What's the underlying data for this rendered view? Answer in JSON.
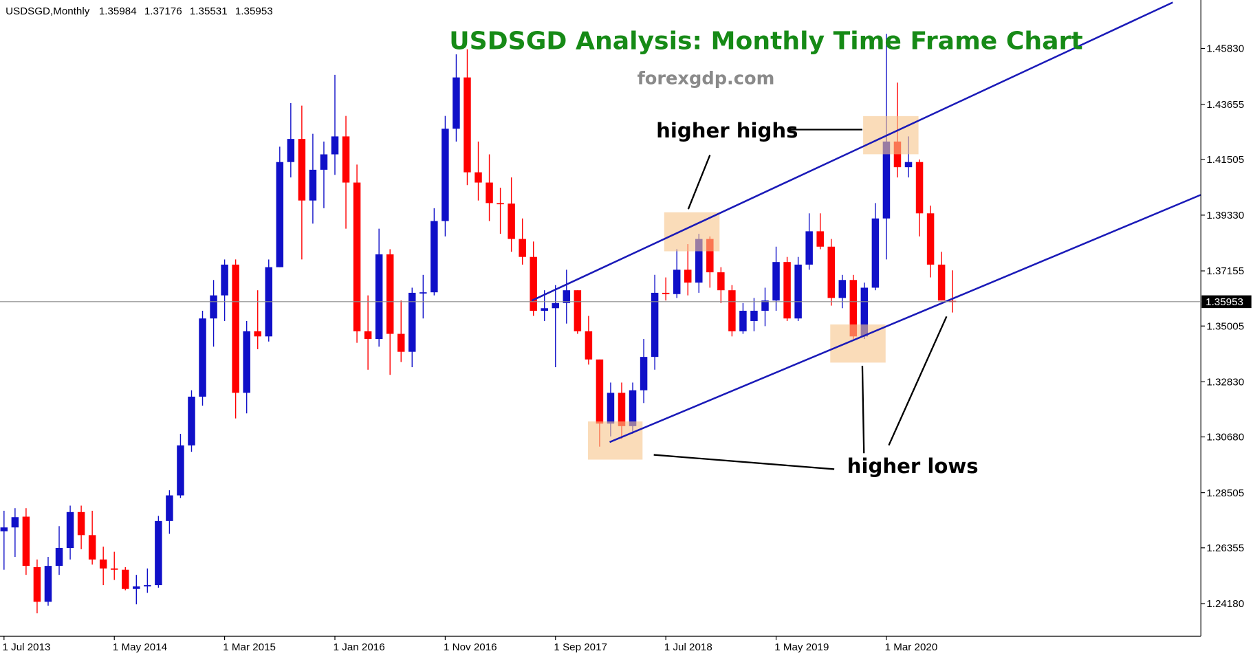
{
  "chart_data": {
    "type": "candlestick",
    "header": {
      "symbol": "USDSGD,Monthly",
      "open": 1.35984,
      "high": 1.37176,
      "low": 1.35531,
      "close": 1.35953
    },
    "title": "USDSGD Analysis: Monthly Time Frame Chart",
    "subtitle": "forexgdp.com",
    "annotations": [
      "higher highs",
      "higher lows"
    ],
    "up_color": "#1010c8",
    "down_color": "#ff0000",
    "ylim": [
      1.2291,
      1.4772
    ],
    "yticks": [
      {
        "value": 1.4583,
        "label": "1.45830"
      },
      1.43655,
      1.41505,
      {
        "value": 1.3933,
        "label": "1.39330"
      },
      1.37155,
      1.35005,
      {
        "value": 1.3283,
        "label": "1.32830"
      },
      {
        "value": 1.3068,
        "label": "1.30680"
      },
      1.28505,
      1.26355,
      {
        "value": 1.2418,
        "label": "1.24180"
      }
    ],
    "categories": [
      "1 Jul 2013",
      null,
      null,
      null,
      null,
      null,
      null,
      null,
      null,
      null,
      "1 May 2014",
      null,
      null,
      null,
      null,
      null,
      null,
      null,
      null,
      null,
      "1 Mar 2015",
      null,
      null,
      null,
      null,
      null,
      null,
      null,
      null,
      null,
      "1 Jan 2016",
      null,
      null,
      null,
      null,
      null,
      null,
      null,
      null,
      null,
      "1 Nov 2016",
      null,
      null,
      null,
      null,
      null,
      null,
      null,
      null,
      null,
      "1 Sep 2017",
      null,
      null,
      null,
      null,
      null,
      null,
      null,
      null,
      null,
      "1 Jul 2018",
      null,
      null,
      null,
      null,
      null,
      null,
      null,
      null,
      null,
      "1 May 2019",
      null,
      null,
      null,
      null,
      null,
      null,
      null,
      null,
      null,
      "1 Mar 2020",
      null,
      null,
      null,
      null,
      null,
      null
    ],
    "ohlc": [
      [
        1.27,
        1.278,
        1.255,
        1.2715
      ],
      [
        1.2715,
        1.279,
        1.26,
        1.2755
      ],
      [
        1.2757,
        1.279,
        1.253,
        1.2565
      ],
      [
        1.256,
        1.259,
        1.238,
        1.2425
      ],
      [
        1.2425,
        1.26,
        1.241,
        1.2565
      ],
      [
        1.2565,
        1.272,
        1.253,
        1.2635
      ],
      [
        1.2635,
        1.28,
        1.259,
        1.2775
      ],
      [
        1.2775,
        1.28,
        1.263,
        1.2685
      ],
      [
        1.2685,
        1.278,
        1.257,
        1.259
      ],
      [
        1.259,
        1.264,
        1.249,
        1.2555
      ],
      [
        1.2555,
        1.262,
        1.251,
        1.255
      ],
      [
        1.255,
        1.256,
        1.247,
        1.2475
      ],
      [
        1.2475,
        1.253,
        1.2415,
        1.2485
      ],
      [
        1.2485,
        1.2555,
        1.246,
        1.249
      ],
      [
        1.249,
        1.276,
        1.248,
        1.274
      ],
      [
        1.274,
        1.286,
        1.269,
        1.284
      ],
      [
        1.284,
        1.308,
        1.283,
        1.3035
      ],
      [
        1.3035,
        1.325,
        1.301,
        1.3225
      ],
      [
        1.3225,
        1.356,
        1.319,
        1.353
      ],
      [
        1.353,
        1.368,
        1.342,
        1.362
      ],
      [
        1.362,
        1.376,
        1.352,
        1.374
      ],
      [
        1.374,
        1.376,
        1.314,
        1.324
      ],
      [
        1.324,
        1.352,
        1.316,
        1.348
      ],
      [
        1.348,
        1.364,
        1.341,
        1.346
      ],
      [
        1.346,
        1.376,
        1.344,
        1.373
      ],
      [
        1.373,
        1.42,
        1.373,
        1.414
      ],
      [
        1.414,
        1.437,
        1.408,
        1.423
      ],
      [
        1.423,
        1.436,
        1.376,
        1.399
      ],
      [
        1.399,
        1.425,
        1.39,
        1.411
      ],
      [
        1.411,
        1.422,
        1.396,
        1.417
      ],
      [
        1.417,
        1.448,
        1.409,
        1.424
      ],
      [
        1.424,
        1.432,
        1.388,
        1.406
      ],
      [
        1.406,
        1.413,
        1.3435,
        1.348
      ],
      [
        1.348,
        1.362,
        1.333,
        1.345
      ],
      [
        1.345,
        1.388,
        1.342,
        1.378
      ],
      [
        1.378,
        1.38,
        1.331,
        1.347
      ],
      [
        1.347,
        1.36,
        1.336,
        1.34
      ],
      [
        1.34,
        1.365,
        1.334,
        1.363
      ],
      [
        1.363,
        1.37,
        1.353,
        1.3632
      ],
      [
        1.3632,
        1.396,
        1.362,
        1.391
      ],
      [
        1.391,
        1.432,
        1.385,
        1.427
      ],
      [
        1.427,
        1.456,
        1.422,
        1.447
      ],
      [
        1.447,
        1.458,
        1.405,
        1.41
      ],
      [
        1.41,
        1.422,
        1.399,
        1.406
      ],
      [
        1.406,
        1.417,
        1.391,
        1.398
      ],
      [
        1.398,
        1.404,
        1.386,
        1.3978
      ],
      [
        1.3978,
        1.408,
        1.379,
        1.384
      ],
      [
        1.384,
        1.392,
        1.374,
        1.377
      ],
      [
        1.377,
        1.383,
        1.354,
        1.356
      ],
      [
        1.356,
        1.364,
        1.352,
        1.357
      ],
      [
        1.357,
        1.366,
        1.334,
        1.359
      ],
      [
        1.359,
        1.372,
        1.351,
        1.364
      ],
      [
        1.364,
        1.364,
        1.347,
        1.348
      ],
      [
        1.348,
        1.354,
        1.335,
        1.337
      ],
      [
        1.337,
        1.337,
        1.303,
        1.312
      ],
      [
        1.312,
        1.328,
        1.307,
        1.324
      ],
      [
        1.324,
        1.328,
        1.306,
        1.311
      ],
      [
        1.311,
        1.328,
        1.308,
        1.325
      ],
      [
        1.325,
        1.345,
        1.32,
        1.338
      ],
      [
        1.338,
        1.37,
        1.333,
        1.363
      ],
      [
        1.363,
        1.369,
        1.36,
        1.3625
      ],
      [
        1.3625,
        1.38,
        1.361,
        1.372
      ],
      [
        1.372,
        1.382,
        1.362,
        1.367
      ],
      [
        1.367,
        1.386,
        1.363,
        1.384
      ],
      [
        1.384,
        1.385,
        1.365,
        1.371
      ],
      [
        1.371,
        1.373,
        1.359,
        1.364
      ],
      [
        1.364,
        1.366,
        1.346,
        1.348
      ],
      [
        1.348,
        1.359,
        1.347,
        1.356
      ],
      [
        1.352,
        1.361,
        1.348,
        1.356
      ],
      [
        1.356,
        1.365,
        1.35,
        1.36
      ],
      [
        1.36,
        1.381,
        1.356,
        1.375
      ],
      [
        1.375,
        1.377,
        1.352,
        1.353
      ],
      [
        1.353,
        1.377,
        1.352,
        1.374
      ],
      [
        1.374,
        1.394,
        1.372,
        1.387
      ],
      [
        1.387,
        1.394,
        1.38,
        1.381
      ],
      [
        1.381,
        1.384,
        1.358,
        1.361
      ],
      [
        1.361,
        1.37,
        1.357,
        1.368
      ],
      [
        1.368,
        1.37,
        1.345,
        1.346
      ],
      [
        1.346,
        1.367,
        1.345,
        1.365
      ],
      [
        1.365,
        1.398,
        1.364,
        1.392
      ],
      [
        1.392,
        1.464,
        1.376,
        1.422
      ],
      [
        1.422,
        1.445,
        1.408,
        1.412
      ],
      [
        1.412,
        1.424,
        1.408,
        1.414
      ],
      [
        1.414,
        1.415,
        1.385,
        1.394
      ],
      [
        1.394,
        1.397,
        1.369,
        1.374
      ],
      [
        1.374,
        1.379,
        1.36,
        1.36
      ],
      [
        1.35984,
        1.37176,
        1.35531,
        1.35953
      ]
    ]
  }
}
